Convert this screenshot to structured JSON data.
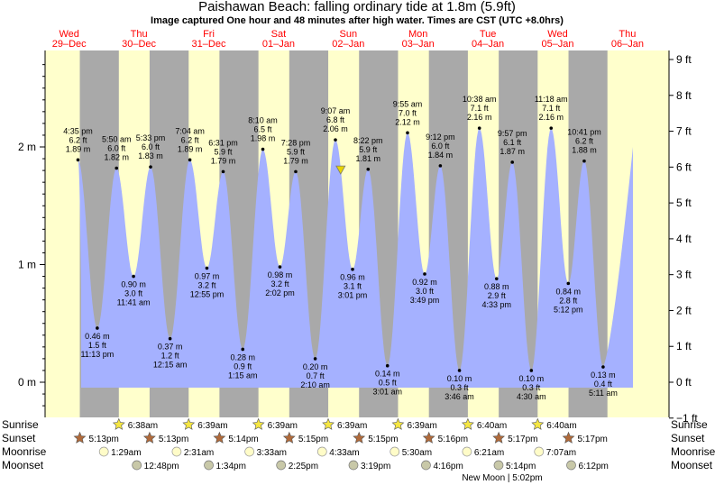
{
  "title": "Paishawan Beach: falling  ordinary tide at 1.8m (5.9ft)",
  "subtitle": "Image captured One hour and 48 minutes after high water. Times are CST (UTC +8.0hrs)",
  "colors": {
    "day_bg": "#ffffcc",
    "night_bg": "#a9a9a9",
    "water": "#a5b1ff",
    "header_red": "#ff0000",
    "sun_yellow": "#f5e642",
    "sunset_brown": "#b06a3a",
    "moonrise": "#fffcc8",
    "moonset": "#c8c8a8",
    "marker": "#e8d400"
  },
  "days": [
    {
      "dow": "Wed",
      "date": "29–Dec"
    },
    {
      "dow": "Thu",
      "date": "30–Dec"
    },
    {
      "dow": "Fri",
      "date": "31–Dec"
    },
    {
      "dow": "Sat",
      "date": "01–Jan"
    },
    {
      "dow": "Sun",
      "date": "02–Jan"
    },
    {
      "dow": "Mon",
      "date": "03–Jan"
    },
    {
      "dow": "Tue",
      "date": "04–Jan"
    },
    {
      "dow": "Wed",
      "date": "05–Jan"
    },
    {
      "dow": "Thu",
      "date": "06–Jan"
    }
  ],
  "chart_data": {
    "type": "area",
    "title": "Paishawan Beach: falling  ordinary tide at 1.8m (5.9ft)",
    "y_left_label": "m",
    "y_left_ticks": [
      "0 m",
      "1 m",
      "2 m"
    ],
    "y_right_ticks": [
      "−1 ft",
      "0 ft",
      "1 ft",
      "2 ft",
      "3 ft",
      "4 ft",
      "5 ft",
      "6 ft",
      "7 ft",
      "8 ft",
      "9 ft"
    ],
    "ylim_m": [
      -0.3,
      2.8
    ],
    "series_name": "tide height",
    "tides": [
      {
        "day": 0,
        "time": "4:35 pm",
        "type": "high",
        "m": 1.89,
        "ft_label": "6.2 ft",
        "m_label": "1.89 m"
      },
      {
        "day": 0,
        "time": "11:13 pm",
        "type": "low",
        "m": 0.46,
        "ft_label": "1.5 ft",
        "m_label": "0.46 m"
      },
      {
        "day": 1,
        "time": "5:50 am",
        "type": "high",
        "m": 1.82,
        "ft_label": "6.0 ft",
        "m_label": "1.82 m"
      },
      {
        "day": 1,
        "time": "11:41 am",
        "type": "low",
        "m": 0.9,
        "ft_label": "3.0 ft",
        "m_label": "0.90 m"
      },
      {
        "day": 1,
        "time": "5:33 pm",
        "type": "high",
        "m": 1.83,
        "ft_label": "6.0 ft",
        "m_label": "1.83 m"
      },
      {
        "day": 2,
        "time": "12:15 am",
        "type": "low",
        "m": 0.37,
        "ft_label": "1.2 ft",
        "m_label": "0.37 m"
      },
      {
        "day": 2,
        "time": "7:04 am",
        "type": "high",
        "m": 1.89,
        "ft_label": "6.2 ft",
        "m_label": "1.89 m"
      },
      {
        "day": 2,
        "time": "12:55 pm",
        "type": "low",
        "m": 0.97,
        "ft_label": "3.2 ft",
        "m_label": "0.97 m"
      },
      {
        "day": 2,
        "time": "6:31 pm",
        "type": "high",
        "m": 1.79,
        "ft_label": "5.9 ft",
        "m_label": "1.79 m"
      },
      {
        "day": 3,
        "time": "1:15 am",
        "type": "low",
        "m": 0.28,
        "ft_label": "0.9 ft",
        "m_label": "0.28 m"
      },
      {
        "day": 3,
        "time": "8:10 am",
        "type": "high",
        "m": 1.98,
        "ft_label": "6.5 ft",
        "m_label": "1.98 m"
      },
      {
        "day": 3,
        "time": "2:02 pm",
        "type": "low",
        "m": 0.98,
        "ft_label": "3.2 ft",
        "m_label": "0.98 m"
      },
      {
        "day": 3,
        "time": "7:28 pm",
        "type": "high",
        "m": 1.79,
        "ft_label": "5.9 ft",
        "m_label": "1.79 m"
      },
      {
        "day": 4,
        "time": "2:10 am",
        "type": "low",
        "m": 0.2,
        "ft_label": "0.7 ft",
        "m_label": "0.20 m"
      },
      {
        "day": 4,
        "time": "9:07 am",
        "type": "high",
        "m": 2.06,
        "ft_label": "6.8 ft",
        "m_label": "2.06 m"
      },
      {
        "day": 4,
        "time": "3:01 pm",
        "type": "low",
        "m": 0.96,
        "ft_label": "3.1 ft",
        "m_label": "0.96 m"
      },
      {
        "day": 4,
        "time": "8:22 pm",
        "type": "high",
        "m": 1.81,
        "ft_label": "5.9 ft",
        "m_label": "1.81 m"
      },
      {
        "day": 5,
        "time": "3:01 am",
        "type": "low",
        "m": 0.14,
        "ft_label": "0.5 ft",
        "m_label": "0.14 m"
      },
      {
        "day": 5,
        "time": "9:55 am",
        "type": "high",
        "m": 2.12,
        "ft_label": "7.0 ft",
        "m_label": "2.12 m"
      },
      {
        "day": 5,
        "time": "3:49 pm",
        "type": "low",
        "m": 0.92,
        "ft_label": "3.0 ft",
        "m_label": "0.92 m"
      },
      {
        "day": 5,
        "time": "9:12 pm",
        "type": "high",
        "m": 1.84,
        "ft_label": "6.0 ft",
        "m_label": "1.84 m"
      },
      {
        "day": 6,
        "time": "3:46 am",
        "type": "low",
        "m": 0.1,
        "ft_label": "0.3 ft",
        "m_label": "0.10 m"
      },
      {
        "day": 6,
        "time": "10:38 am",
        "type": "high",
        "m": 2.16,
        "ft_label": "7.1 ft",
        "m_label": "2.16 m"
      },
      {
        "day": 6,
        "time": "4:33 pm",
        "type": "low",
        "m": 0.88,
        "ft_label": "2.9 ft",
        "m_label": "0.88 m"
      },
      {
        "day": 6,
        "time": "9:57 pm",
        "type": "high",
        "m": 1.87,
        "ft_label": "6.1 ft",
        "m_label": "1.87 m"
      },
      {
        "day": 7,
        "time": "4:30 am",
        "type": "low",
        "m": 0.1,
        "ft_label": "0.3 ft",
        "m_label": "0.10 m"
      },
      {
        "day": 7,
        "time": "11:18 am",
        "type": "high",
        "m": 2.16,
        "ft_label": "7.1 ft",
        "m_label": "2.16 m"
      },
      {
        "day": 7,
        "time": "5:12 pm",
        "type": "low",
        "m": 0.84,
        "ft_label": "2.8 ft",
        "m_label": "0.84 m"
      },
      {
        "day": 7,
        "time": "10:41 pm",
        "type": "high",
        "m": 1.88,
        "ft_label": "6.2 ft",
        "m_label": "1.88 m"
      },
      {
        "day": 8,
        "time": "5:11 am",
        "type": "low",
        "m": 0.13,
        "ft_label": "0.4 ft",
        "m_label": "0.13 m"
      }
    ],
    "current_level": {
      "day": 4,
      "time": "10:55 am",
      "m": 1.8
    }
  },
  "astro": {
    "labels": {
      "sunrise": "Sunrise",
      "sunset": "Sunset",
      "moonrise": "Moonrise",
      "moonset": "Moonset"
    },
    "sunrise": [
      {
        "day": 1,
        "time": "6:38am"
      },
      {
        "day": 2,
        "time": "6:39am"
      },
      {
        "day": 3,
        "time": "6:39am"
      },
      {
        "day": 4,
        "time": "6:39am"
      },
      {
        "day": 5,
        "time": "6:39am"
      },
      {
        "day": 6,
        "time": "6:40am"
      },
      {
        "day": 7,
        "time": "6:40am"
      }
    ],
    "sunset": [
      {
        "day": 0,
        "time": "5:13pm"
      },
      {
        "day": 1,
        "time": "5:13pm"
      },
      {
        "day": 2,
        "time": "5:14pm"
      },
      {
        "day": 3,
        "time": "5:15pm"
      },
      {
        "day": 4,
        "time": "5:15pm"
      },
      {
        "day": 5,
        "time": "5:16pm"
      },
      {
        "day": 6,
        "time": "5:17pm"
      },
      {
        "day": 7,
        "time": "5:17pm"
      }
    ],
    "moonrise": [
      {
        "day": 1,
        "time": "1:29am"
      },
      {
        "day": 2,
        "time": "2:31am"
      },
      {
        "day": 3,
        "time": "3:33am"
      },
      {
        "day": 4,
        "time": "4:33am"
      },
      {
        "day": 5,
        "time": "5:30am"
      },
      {
        "day": 6,
        "time": "6:21am"
      },
      {
        "day": 7,
        "time": "7:07am"
      }
    ],
    "moonset": [
      {
        "day": 1,
        "time": "12:48pm"
      },
      {
        "day": 2,
        "time": "1:34pm"
      },
      {
        "day": 3,
        "time": "2:25pm"
      },
      {
        "day": 4,
        "time": "3:19pm"
      },
      {
        "day": 5,
        "time": "4:16pm"
      },
      {
        "day": 6,
        "time": "5:14pm"
      },
      {
        "day": 7,
        "time": "6:12pm"
      }
    ],
    "new_moon": {
      "day": 6,
      "time": "5:02pm",
      "label": "New Moon | 5:02pm"
    }
  }
}
